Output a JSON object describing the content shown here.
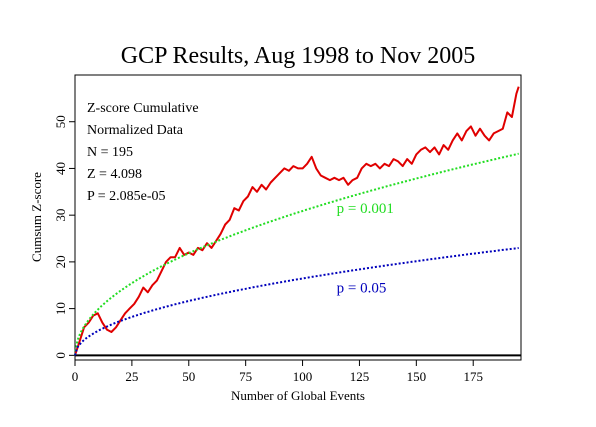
{
  "chart_data": {
    "type": "line",
    "title": "GCP Results, Aug 1998 to Nov 2005",
    "xlabel": "Number of Global Events",
    "ylabel": "Cumsum Z-score",
    "xlim": [
      0,
      196
    ],
    "ylim": [
      -1,
      60
    ],
    "xticks": [
      0,
      25,
      50,
      75,
      100,
      125,
      150,
      175
    ],
    "yticks": [
      0,
      10,
      20,
      30,
      40,
      50
    ],
    "grid": false,
    "stats": [
      "Z-score Cumulative",
      "Normalized Data",
      "N = 195",
      "Z = 4.098",
      "P = 2.085e-05"
    ],
    "series": [
      {
        "name": "Cumulative Z-score",
        "color": "#e00000",
        "x": [
          0,
          2,
          4,
          6,
          8,
          10,
          12,
          14,
          16,
          18,
          20,
          22,
          24,
          26,
          28,
          30,
          32,
          34,
          36,
          38,
          40,
          42,
          44,
          46,
          48,
          50,
          52,
          54,
          56,
          58,
          60,
          62,
          64,
          66,
          68,
          70,
          72,
          74,
          76,
          78,
          80,
          82,
          84,
          86,
          88,
          90,
          92,
          94,
          96,
          98,
          100,
          102,
          104,
          106,
          108,
          110,
          112,
          114,
          116,
          118,
          120,
          122,
          124,
          126,
          128,
          130,
          132,
          134,
          136,
          138,
          140,
          142,
          144,
          146,
          148,
          150,
          152,
          154,
          156,
          158,
          160,
          162,
          164,
          166,
          168,
          170,
          172,
          174,
          176,
          178,
          180,
          182,
          184,
          186,
          188,
          190,
          192,
          194,
          195
        ],
        "y": [
          0,
          3,
          6,
          7,
          8.5,
          9,
          7,
          5.5,
          5,
          6,
          7.5,
          9,
          10,
          11,
          12.5,
          14.5,
          13.5,
          15,
          16,
          18,
          20,
          21,
          21,
          23,
          21.5,
          22,
          21.5,
          23,
          22.5,
          24,
          23,
          24.5,
          26,
          28,
          29,
          31.5,
          31,
          33,
          34,
          36,
          35,
          36.5,
          35.5,
          37,
          38,
          39,
          40,
          39.5,
          40.5,
          40,
          40,
          41,
          42.5,
          40,
          38.5,
          38,
          37.5,
          38,
          37.5,
          38,
          36.5,
          37.5,
          38,
          40,
          41,
          40.5,
          41,
          40,
          41,
          40.5,
          42,
          41.5,
          40.5,
          42,
          41,
          43,
          44,
          44.5,
          43.5,
          44.5,
          43,
          45,
          44,
          46,
          47.5,
          46,
          48,
          49,
          47,
          48.5,
          47,
          46,
          47.5,
          48,
          48.5,
          52,
          51,
          56,
          57.5
        ]
      },
      {
        "name": "p = 0.001",
        "color": "#22dd22",
        "equation": "3.09*sqrt(n)"
      },
      {
        "name": "p = 0.05",
        "color": "#0000bb",
        "equation": "1.645*sqrt(n)"
      }
    ],
    "annotations": [
      {
        "text": "p = 0.001",
        "x": 115,
        "y": 30.5,
        "color": "#22dd22"
      },
      {
        "text": "p = 0.05",
        "x": 115,
        "y": 13.5,
        "color": "#0000bb"
      }
    ]
  }
}
